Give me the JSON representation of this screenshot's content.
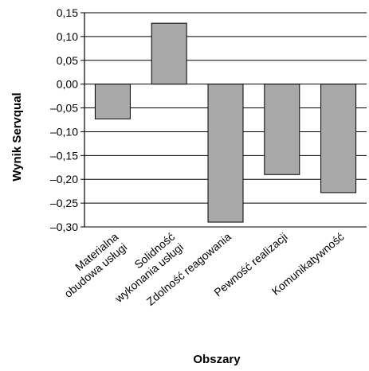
{
  "chart_data": {
    "type": "bar",
    "categories": [
      [
        "Materialna",
        "obudowa usługi"
      ],
      [
        "Solidność",
        "wykonania usługi"
      ],
      [
        "Zdolność reagowania"
      ],
      [
        "Pewność realizacji"
      ],
      [
        "Komunikatywność"
      ]
    ],
    "values": [
      -0.073,
      0.128,
      -0.29,
      -0.19,
      -0.228
    ],
    "xlabel": "Obszary",
    "ylabel": "Wynik Servqual",
    "ylim": [
      -0.3,
      0.15
    ],
    "yticks": [
      0.15,
      0.1,
      0.05,
      0.0,
      -0.05,
      -0.1,
      -0.15,
      -0.2,
      -0.25,
      -0.3
    ],
    "ytick_labels": [
      "0,15",
      "0,10",
      "0,05",
      "0,00",
      "–0,05",
      "–0,10",
      "–0,15",
      "–0,20",
      "–0,25",
      "–0,30"
    ],
    "grid": true,
    "colors": {
      "bar_fill": "#a9a9a9",
      "bar_stroke": "#000000",
      "grid": "#000000"
    }
  }
}
